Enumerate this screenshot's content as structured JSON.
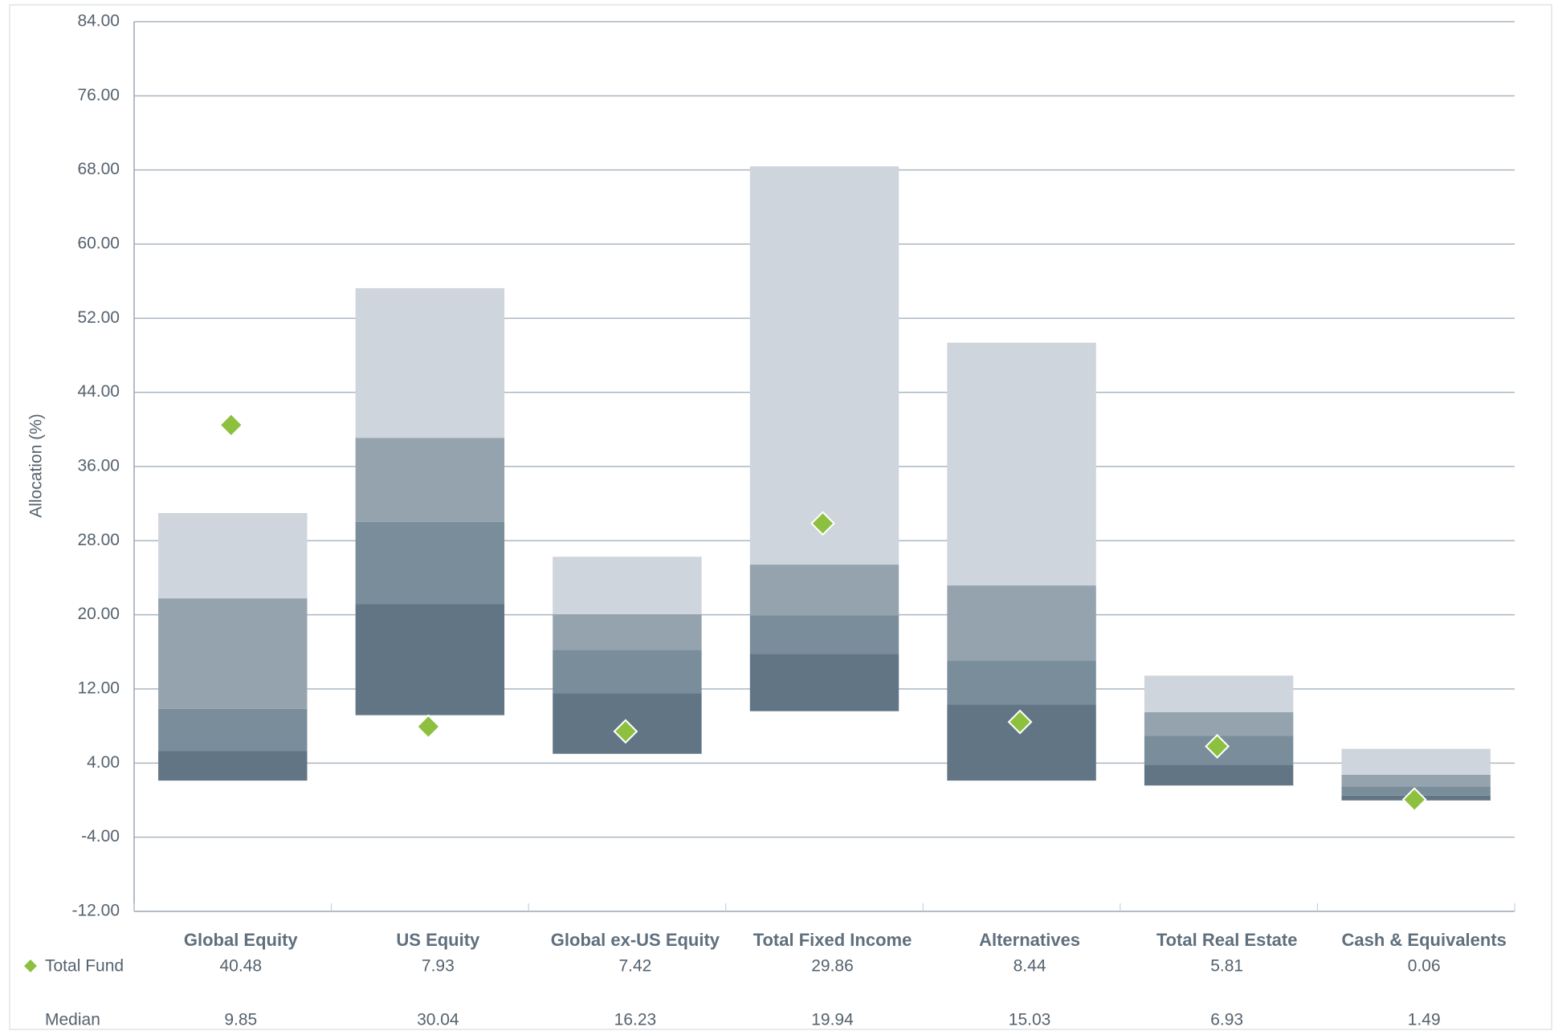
{
  "chart_data": {
    "type": "range_bar",
    "y_label": "Allocation (%)",
    "categories": [
      "Global Equity",
      "US Equity",
      "Global ex-US Equity",
      "Total Fixed Income",
      "Alternatives",
      "Total Real Estate",
      "Cash & Equivalents"
    ],
    "series": [
      {
        "name": "Total Fund",
        "color": "#8dc03f",
        "values": [
          40.48,
          7.93,
          7.42,
          29.86,
          8.44,
          5.81,
          0.06
        ]
      },
      {
        "name": "Median",
        "values": [
          9.85,
          30.04,
          16.23,
          19.94,
          15.03,
          6.93,
          1.49
        ]
      }
    ],
    "ranges": [
      [
        2.11,
        5.32,
        21.78,
        30.98
      ],
      [
        9.17,
        21.14,
        39.1,
        55.24
      ],
      [
        5.0,
        11.52,
        20.07,
        26.27
      ],
      [
        9.6,
        15.8,
        25.42,
        68.39
      ],
      [
        2.11,
        10.34,
        23.17,
        49.36
      ],
      [
        1.58,
        3.82,
        9.49,
        13.44
      ],
      [
        -0.03,
        0.5,
        2.75,
        5.53
      ]
    ],
    "range_colors": [
      "#627585",
      "#7a8d9b",
      "#95a3af",
      "#cfd5dc"
    ],
    "ylim": [
      -12,
      84
    ],
    "yticks": [
      {
        "value": -12,
        "label": "-12.00"
      },
      {
        "value": -4,
        "label": "-4.00"
      },
      {
        "value": 4,
        "label": "4.00"
      },
      {
        "value": 12,
        "label": "12.00"
      },
      {
        "value": 20,
        "label": "20.00"
      },
      {
        "value": 28,
        "label": "28.00"
      },
      {
        "value": 36,
        "label": "36.00"
      },
      {
        "value": 44,
        "label": "44.00"
      },
      {
        "value": 52,
        "label": "52.00"
      },
      {
        "value": 60,
        "label": "60.00"
      },
      {
        "value": 68,
        "label": "68.00"
      },
      {
        "value": 76,
        "label": "76.00"
      },
      {
        "value": 84,
        "label": "84.00"
      }
    ],
    "grid": true
  }
}
